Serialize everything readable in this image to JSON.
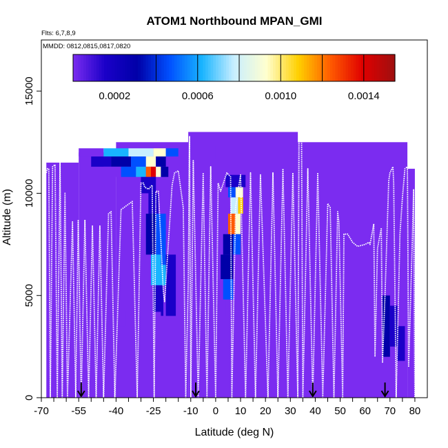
{
  "chart_data": {
    "type": "heatmap",
    "title": "ATOM1 Northbound MPAN_GMI",
    "flights_note": "Flts: 6,7,8,9",
    "dates_note": "MMDD: 0812,0815,0817,0820",
    "xlabel": "Latitude (deg N)",
    "ylabel": "Altitude (m)",
    "xlim": [
      -70,
      85
    ],
    "ylim": [
      0,
      17500
    ],
    "x_ticks": [
      -70,
      -55,
      -40,
      -25,
      -10,
      0,
      10,
      20,
      30,
      40,
      50,
      60,
      70,
      80
    ],
    "x_tick_labels": [
      "-70",
      "-55",
      "-40",
      "-25",
      "-10",
      "0",
      "10",
      "20",
      "30",
      "40",
      "50",
      "60",
      "70",
      "80"
    ],
    "x_minor_ticks": [
      -65,
      -60,
      -50,
      -45,
      -35,
      -30,
      -20,
      -15,
      -5,
      5,
      15,
      25,
      35,
      45,
      55,
      65,
      75
    ],
    "y_ticks": [
      0,
      5000,
      10000,
      15000
    ],
    "y_tick_labels": [
      "0",
      "5000",
      "10000",
      "15000"
    ],
    "colorbar": {
      "min": 0,
      "max": 0.00155,
      "ticks": [
        0.0002,
        0.0006,
        0.001,
        0.0014
      ],
      "tick_labels": [
        "0.0002",
        "0.0006",
        "0.0010",
        "0.0014"
      ],
      "boundaries": [
        0.0004,
        0.0006,
        0.0008,
        0.001,
        0.0012,
        0.0014
      ],
      "colors": [
        "#7b2cf0",
        "#1a00c8",
        "#0000a8",
        "#0050ff",
        "#18b4ff",
        "#c8eeff",
        "#ffffd0",
        "#ffd000",
        "#ff5a00",
        "#e00000",
        "#9e1010"
      ]
    },
    "background_value": 3e-05,
    "regions": [
      {
        "x": [
          -68,
          -55
        ],
        "y": [
          0,
          11500
        ],
        "value": 3e-05
      },
      {
        "x": [
          -55,
          -40
        ],
        "y": [
          0,
          12000
        ],
        "value": 3e-05
      },
      {
        "x": [
          -40,
          -11
        ],
        "y": [
          0,
          12500
        ],
        "value": 3e-05
      },
      {
        "x": [
          -11,
          33
        ],
        "y": [
          0,
          13000
        ],
        "value": 3e-05
      },
      {
        "x": [
          33,
          77
        ],
        "y": [
          0,
          12500
        ],
        "value": 3e-05
      },
      {
        "x": [
          77,
          80
        ],
        "y": [
          0,
          11200
        ],
        "value": 3e-05
      }
    ],
    "cells": [
      {
        "x": [
          -55,
          -45
        ],
        "y": [
          11800,
          12200
        ],
        "value": 0.00012
      },
      {
        "x": [
          -45,
          -35
        ],
        "y": [
          11800,
          12200
        ],
        "value": 0.00058
      },
      {
        "x": [
          -35,
          -25
        ],
        "y": [
          11800,
          12200
        ],
        "value": 0.00078
      },
      {
        "x": [
          -25,
          -20
        ],
        "y": [
          11800,
          12200
        ],
        "value": 0.00088
      },
      {
        "x": [
          -20,
          -15
        ],
        "y": [
          11800,
          12200
        ],
        "value": 0.00045
      },
      {
        "x": [
          -50,
          -42
        ],
        "y": [
          11300,
          11800
        ],
        "value": 0.00015
      },
      {
        "x": [
          -42,
          -34
        ],
        "y": [
          11300,
          11800
        ],
        "value": 0.0004
      },
      {
        "x": [
          -34,
          -28
        ],
        "y": [
          11300,
          11800
        ],
        "value": 0.00055
      },
      {
        "x": [
          -28,
          -24
        ],
        "y": [
          11300,
          11800
        ],
        "value": 0.0009
      },
      {
        "x": [
          -24,
          -20
        ],
        "y": [
          11300,
          11800
        ],
        "value": 0.00035
      },
      {
        "x": [
          -45,
          -38
        ],
        "y": [
          10800,
          11300
        ],
        "value": 0.0001
      },
      {
        "x": [
          -38,
          -32
        ],
        "y": [
          10800,
          11300
        ],
        "value": 0.0005
      },
      {
        "x": [
          -32,
          -28
        ],
        "y": [
          10800,
          11300
        ],
        "value": 0.0007
      },
      {
        "x": [
          -28,
          -26
        ],
        "y": [
          10800,
          11300
        ],
        "value": 0.0012
      },
      {
        "x": [
          -26,
          -24
        ],
        "y": [
          10800,
          11300
        ],
        "value": 0.00135
      },
      {
        "x": [
          -24,
          -22
        ],
        "y": [
          10800,
          11300
        ],
        "value": 0.0009
      },
      {
        "x": [
          -22,
          -19
        ],
        "y": [
          10800,
          11300
        ],
        "value": 0.0003
      },
      {
        "x": [
          -30,
          -24
        ],
        "y": [
          10000,
          10800
        ],
        "value": 0.00022
      },
      {
        "x": [
          -27,
          -23
        ],
        "y": [
          9000,
          10000
        ],
        "value": 0.00018
      },
      {
        "x": [
          -28,
          -24
        ],
        "y": [
          7000,
          9000
        ],
        "value": 0.0003
      },
      {
        "x": [
          -24,
          -20
        ],
        "y": [
          6500,
          9000
        ],
        "value": 0.00045
      },
      {
        "x": [
          -26,
          -22
        ],
        "y": [
          5500,
          7000
        ],
        "value": 0.0006
      },
      {
        "x": [
          -22,
          -19
        ],
        "y": [
          5500,
          6500
        ],
        "value": 0.0007
      },
      {
        "x": [
          -25,
          -21
        ],
        "y": [
          4000,
          5500
        ],
        "value": 0.00025
      },
      {
        "x": [
          -20,
          -16
        ],
        "y": [
          4000,
          7000
        ],
        "value": 0.0002
      },
      {
        "x": [
          -26,
          -20
        ],
        "y": [
          2800,
          4000
        ],
        "value": 0.00012
      },
      {
        "x": [
          -10,
          -7
        ],
        "y": [
          11500,
          12200
        ],
        "value": 0.00012
      },
      {
        "x": [
          0,
          10
        ],
        "y": [
          11700,
          12300
        ],
        "value": 0.0001
      },
      {
        "x": [
          4,
          12
        ],
        "y": [
          10300,
          10900
        ],
        "value": 0.00025
      },
      {
        "x": [
          5,
          8
        ],
        "y": [
          9800,
          10300
        ],
        "value": 0.0005
      },
      {
        "x": [
          8,
          11
        ],
        "y": [
          9800,
          10300
        ],
        "value": 0.0009
      },
      {
        "x": [
          6,
          9
        ],
        "y": [
          9000,
          9800
        ],
        "value": 0.00075
      },
      {
        "x": [
          9,
          11
        ],
        "y": [
          9000,
          9800
        ],
        "value": 0.0011
      },
      {
        "x": [
          5,
          8
        ],
        "y": [
          8000,
          9000
        ],
        "value": 0.0012
      },
      {
        "x": [
          8,
          10
        ],
        "y": [
          8000,
          9000
        ],
        "value": 0.0009
      },
      {
        "x": [
          3,
          7
        ],
        "y": [
          7000,
          8000
        ],
        "value": 0.0004
      },
      {
        "x": [
          7,
          10
        ],
        "y": [
          7000,
          8000
        ],
        "value": 0.00055
      },
      {
        "x": [
          2,
          7
        ],
        "y": [
          5800,
          7000
        ],
        "value": 0.0003
      },
      {
        "x": [
          3,
          7
        ],
        "y": [
          4800,
          5800
        ],
        "value": 0.00055
      },
      {
        "x": [
          1,
          4
        ],
        "y": [
          4000,
          4800
        ],
        "value": 0.00012
      },
      {
        "x": [
          64,
          69
        ],
        "y": [
          5000,
          7500
        ],
        "value": 0.00012
      },
      {
        "x": [
          67,
          70
        ],
        "y": [
          2000,
          5000
        ],
        "value": 0.00032
      },
      {
        "x": [
          70,
          73
        ],
        "y": [
          2500,
          4500
        ],
        "value": 0.00022
      },
      {
        "x": [
          73,
          76
        ],
        "y": [
          1800,
          3500
        ],
        "value": 0.00015
      },
      {
        "x": [
          -32,
          -22
        ],
        "y": [
          2500,
          4200
        ],
        "value": 8e-05
      },
      {
        "x": [
          -42,
          -36
        ],
        "y": [
          3500,
          4200
        ],
        "value": 6e-05
      }
    ],
    "flight_track": [
      [
        -68,
        11000
      ],
      [
        -67.6,
        11200
      ],
      [
        -67,
        11200
      ],
      [
        -66.4,
        0
      ],
      [
        -65.5,
        11300
      ],
      [
        -64.5,
        11400
      ],
      [
        -63.6,
        0
      ],
      [
        -62.5,
        11500
      ],
      [
        -61.6,
        0
      ],
      [
        -60.5,
        10000
      ],
      [
        -59.5,
        0
      ],
      [
        -57.5,
        8600
      ],
      [
        -56.2,
        0
      ],
      [
        -55.2,
        8700
      ],
      [
        -54,
        0
      ],
      [
        -52.5,
        8700
      ],
      [
        -51,
        0
      ],
      [
        -49.5,
        8400
      ],
      [
        -48,
        0
      ],
      [
        -46.5,
        8400
      ],
      [
        -45,
        0
      ],
      [
        -43,
        9000
      ],
      [
        -42,
        9100
      ],
      [
        -40.5,
        0
      ],
      [
        -38,
        9200
      ],
      [
        -33.5,
        9600
      ],
      [
        -31.5,
        0
      ],
      [
        -30,
        10500
      ],
      [
        -29,
        10500
      ],
      [
        -28.5,
        10300
      ],
      [
        -27,
        10200
      ],
      [
        -25.5,
        10400
      ],
      [
        -24.7,
        0
      ],
      [
        -24,
        10100
      ],
      [
        -23,
        10100
      ],
      [
        -21,
        5200
      ],
      [
        -20.5,
        4700
      ],
      [
        -17.5,
        10400
      ],
      [
        -16.5,
        11000
      ],
      [
        -15,
        11100
      ],
      [
        -13,
        9300
      ],
      [
        -12,
        0
      ],
      [
        -11,
        5800
      ],
      [
        -10.5,
        12800
      ],
      [
        -10,
        0
      ],
      [
        -9,
        11600
      ],
      [
        -7,
        0
      ],
      [
        -5,
        11000
      ],
      [
        -3.5,
        0
      ],
      [
        -2,
        11300
      ],
      [
        0,
        0
      ],
      [
        1,
        10500
      ],
      [
        2,
        10100
      ],
      [
        4.5,
        11000
      ],
      [
        6,
        10800
      ],
      [
        6.5,
        0
      ],
      [
        8,
        9300
      ],
      [
        10,
        10900
      ],
      [
        12,
        0
      ],
      [
        14,
        11000
      ],
      [
        16,
        0
      ],
      [
        18,
        10900
      ],
      [
        21,
        0
      ],
      [
        23,
        11000
      ],
      [
        25,
        0
      ],
      [
        27,
        11200
      ],
      [
        29,
        0
      ],
      [
        31,
        11000
      ],
      [
        33,
        0
      ],
      [
        33.5,
        12800
      ],
      [
        34.5,
        12800
      ],
      [
        35,
        0
      ],
      [
        37,
        11200
      ],
      [
        39,
        0
      ],
      [
        41,
        11000
      ],
      [
        43,
        0
      ],
      [
        45,
        9500
      ],
      [
        46,
        9300
      ],
      [
        47.5,
        0
      ],
      [
        49,
        9100
      ],
      [
        49.5,
        8600
      ],
      [
        51,
        0
      ],
      [
        51.5,
        8000
      ],
      [
        53,
        8000
      ],
      [
        55,
        7600
      ],
      [
        57,
        7400
      ],
      [
        60,
        7500
      ],
      [
        61.5,
        7600
      ],
      [
        62,
        7500
      ],
      [
        63.5,
        8500
      ],
      [
        64,
        2000
      ],
      [
        65,
        7300
      ],
      [
        66.5,
        8300
      ],
      [
        67,
        1700
      ],
      [
        68,
        5000
      ],
      [
        69.5,
        10600
      ],
      [
        70,
        11000
      ],
      [
        71.2,
        11300
      ],
      [
        71.5,
        10500
      ],
      [
        72.5,
        0
      ],
      [
        74,
        8000
      ],
      [
        75,
        9800
      ],
      [
        76,
        11200
      ],
      [
        77,
        11300
      ],
      [
        77.5,
        1500
      ],
      [
        79,
        7800
      ],
      [
        79.5,
        10200
      ],
      [
        80,
        0
      ]
    ],
    "marker_arrows_x": [
      -54,
      -8,
      39,
      68
    ]
  }
}
